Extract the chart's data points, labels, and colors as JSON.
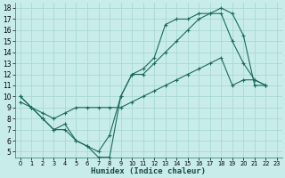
{
  "xlabel": "Humidex (Indice chaleur)",
  "bg_color": "#c8ecea",
  "grid_color": "#aad8d4",
  "line_color": "#1a6b5a",
  "xlim": [
    -0.5,
    23.5
  ],
  "ylim": [
    4.5,
    18.5
  ],
  "yticks": [
    5,
    6,
    7,
    8,
    9,
    10,
    11,
    12,
    13,
    14,
    15,
    16,
    17,
    18
  ],
  "xticks": [
    0,
    1,
    2,
    3,
    4,
    5,
    6,
    7,
    8,
    9,
    10,
    11,
    12,
    13,
    14,
    15,
    16,
    17,
    18,
    19,
    20,
    21,
    22,
    23
  ],
  "line1_x": [
    0,
    1,
    2,
    3,
    4,
    5,
    6,
    7,
    8,
    9,
    10,
    11,
    12,
    13,
    14,
    15,
    16,
    17,
    18,
    19,
    20,
    21,
    22
  ],
  "line1_y": [
    10,
    9,
    8,
    7,
    7,
    6,
    5.5,
    4.5,
    4.5,
    10,
    12,
    12,
    13,
    14,
    15,
    16,
    17,
    17.5,
    17.5,
    15,
    13,
    11.5,
    11
  ],
  "line2_x": [
    0,
    1,
    2,
    3,
    4,
    5,
    6,
    7,
    8,
    9,
    10,
    11,
    12,
    13,
    14,
    15,
    16,
    17,
    18,
    19,
    20,
    21,
    22
  ],
  "line2_y": [
    10,
    9,
    8,
    7,
    7.5,
    6,
    5.5,
    5,
    6.5,
    10,
    12,
    12.5,
    13.5,
    16.5,
    17,
    17,
    17.5,
    17.5,
    18,
    17.5,
    15.5,
    11,
    11
  ],
  "line3_x": [
    0,
    1,
    2,
    3,
    4,
    5,
    6,
    7,
    8,
    9,
    10,
    11,
    12,
    13,
    14,
    15,
    16,
    17,
    18,
    19,
    20,
    21,
    22
  ],
  "line3_y": [
    9.5,
    9,
    8.5,
    8,
    8.5,
    9,
    9,
    9,
    9,
    9,
    9.5,
    10,
    10.5,
    11,
    11.5,
    12,
    12.5,
    13,
    13.5,
    11,
    11.5,
    11.5,
    11
  ]
}
